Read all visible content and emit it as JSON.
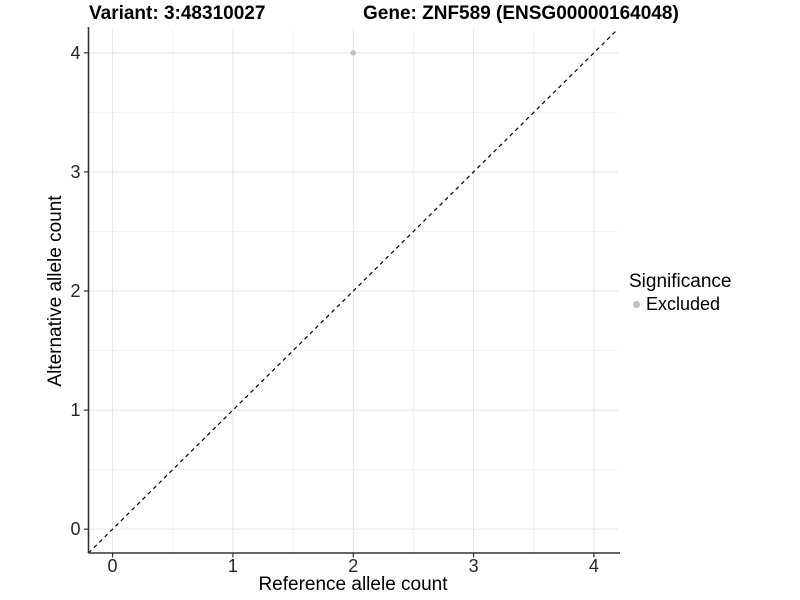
{
  "titles": {
    "variant": "Variant: 3:48310027",
    "gene": "Gene: ZNF589 (ENSG00000164048)"
  },
  "legend": {
    "title": "Significance",
    "items": [
      {
        "label": "Excluded",
        "marker": "circle-icon",
        "color": "#BEBEBE"
      }
    ]
  },
  "colors": {
    "background": "#FFFFFF",
    "grid_major": "#E4E4E4",
    "grid_minor": "#F2F2F2",
    "axis_line": "#333333",
    "tick_mark": "#333333",
    "tick_text": "#262626",
    "reference_line": "#000000",
    "point": "#BEBEBE"
  },
  "chart_data": {
    "type": "scatter",
    "title": "Variant: 3:48310027        Gene: ZNF589 (ENSG00000164048)",
    "xlabel": "Reference allele count",
    "ylabel": "Alternative allele count",
    "xlim": [
      -0.2,
      4.2
    ],
    "ylim": [
      -0.2,
      4.2
    ],
    "x_ticks": [
      0,
      1,
      2,
      3,
      4
    ],
    "y_ticks": [
      0,
      1,
      2,
      3,
      4
    ],
    "x_minor_ticks": [
      0.5,
      1.5,
      2.5,
      3.5
    ],
    "y_minor_ticks": [
      0.5,
      1.5,
      2.5,
      3.5
    ],
    "grid": "on",
    "legend_position": "right",
    "reference_line": {
      "style": "dashed",
      "from": [
        -0.2,
        -0.2
      ],
      "to": [
        4.2,
        4.2
      ]
    },
    "series": [
      {
        "name": "Excluded",
        "color": "#BEBEBE",
        "points": [
          {
            "x": 2,
            "y": 4
          }
        ]
      }
    ]
  }
}
